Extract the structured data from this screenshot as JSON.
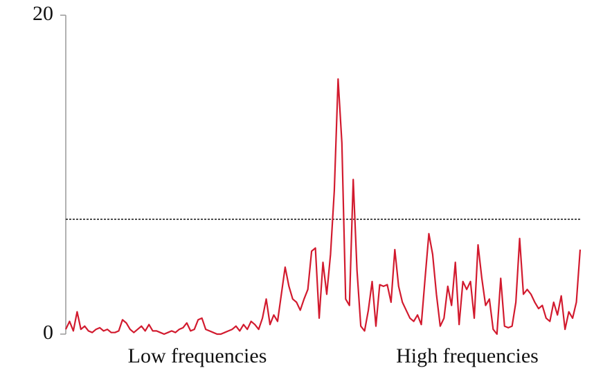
{
  "chart_data": {
    "type": "line",
    "series": [
      {
        "color": "#d21a2e",
        "values": [
          0.3,
          0.8,
          0.2,
          1.4,
          0.3,
          0.5,
          0.2,
          0.1,
          0.3,
          0.4,
          0.2,
          0.3,
          0.1,
          0.1,
          0.2,
          0.9,
          0.7,
          0.3,
          0.1,
          0.3,
          0.5,
          0.2,
          0.6,
          0.2,
          0.2,
          0.1,
          0.0,
          0.1,
          0.2,
          0.1,
          0.3,
          0.4,
          0.7,
          0.2,
          0.3,
          0.9,
          1.0,
          0.3,
          0.2,
          0.1,
          0.0,
          0.0,
          0.1,
          0.2,
          0.3,
          0.5,
          0.2,
          0.6,
          0.3,
          0.8,
          0.6,
          0.3,
          1.0,
          2.2,
          0.6,
          1.2,
          0.8,
          2.5,
          4.2,
          3.0,
          2.2,
          2.0,
          1.5,
          2.2,
          2.8,
          5.2,
          5.4,
          1.0,
          4.5,
          2.5,
          5.0,
          9.0,
          16.0,
          12.0,
          2.2,
          1.8,
          9.7,
          4.0,
          0.5,
          0.2,
          1.5,
          3.3,
          0.5,
          3.1,
          3.0,
          3.1,
          2.0,
          5.3,
          3.0,
          2.0,
          1.5,
          1.0,
          0.8,
          1.2,
          0.6,
          3.5,
          6.3,
          5.0,
          2.5,
          0.5,
          1.0,
          3.0,
          1.8,
          4.5,
          0.6,
          3.3,
          2.8,
          3.3,
          1.0,
          5.6,
          3.5,
          1.8,
          2.2,
          0.3,
          0.0,
          3.5,
          0.5,
          0.4,
          0.5,
          2.0,
          6.0,
          2.5,
          2.8,
          2.5,
          2.0,
          1.6,
          1.8,
          1.0,
          0.8,
          2.0,
          1.2,
          2.4,
          0.3,
          1.4,
          1.0,
          2.0,
          5.3
        ]
      }
    ],
    "ylim": [
      0,
      20
    ],
    "yticks": [
      0,
      20
    ],
    "threshold": 7.2,
    "annotations": [
      "Low frequencies",
      "High frequencies"
    ]
  }
}
